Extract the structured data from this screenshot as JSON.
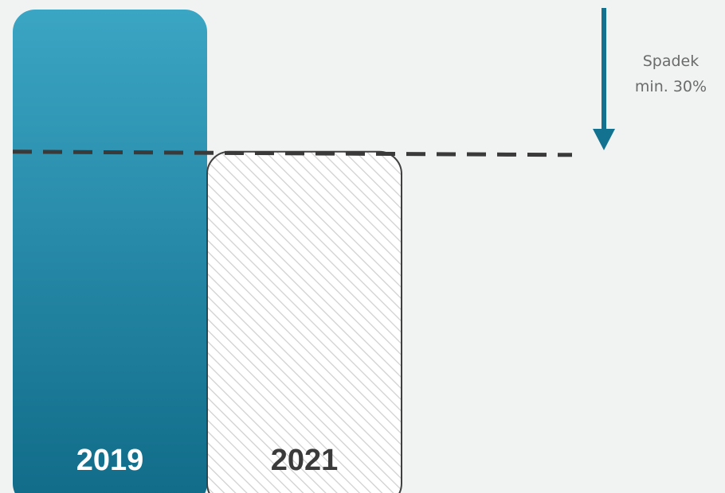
{
  "chart_data": {
    "type": "bar",
    "categories": [
      "2019",
      "2021"
    ],
    "values": [
      100,
      70
    ],
    "ylim": [
      0,
      100
    ],
    "threshold": {
      "value": 70,
      "style": "dashed"
    },
    "annotation": {
      "lines": [
        "Spadek",
        "min. 30%"
      ],
      "arrow": "down"
    },
    "bar_styles": [
      "solid-gradient",
      "hatched-outline"
    ],
    "colors": {
      "bar_top": "#3ba5c4",
      "bar_bottom": "#106b88",
      "bar_label_light": "#ffffff",
      "bar_label_dark": "#3a3a3a",
      "outline": "#404040",
      "hatch": "#cfcfcf",
      "dashed_line": "#3a3a3a",
      "arrow": "#12728f",
      "background": "#f1f3f3"
    }
  }
}
